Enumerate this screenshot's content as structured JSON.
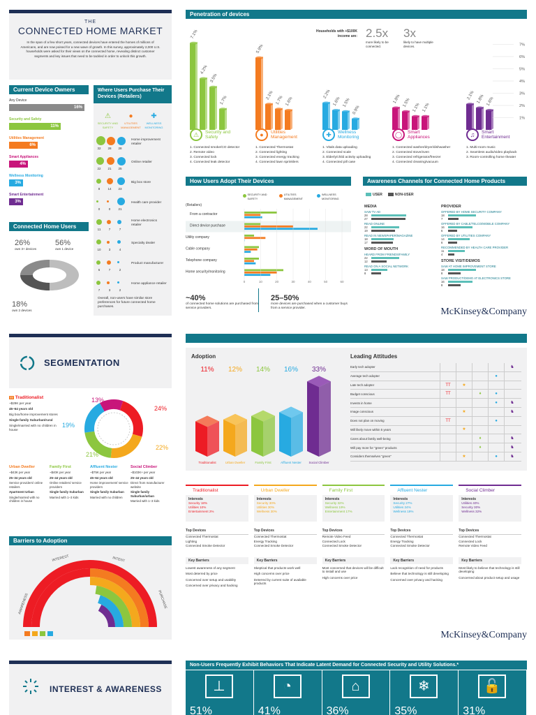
{
  "colors": {
    "teal": "#12788a",
    "navy": "#1e2f55",
    "grey": "#8a8a8a",
    "security": "#8cc63f",
    "utilities": "#f47b20",
    "wellness": "#27aae1",
    "appliances": "#c8157a",
    "entertainment": "#6f2c91",
    "red": "#ed1c24"
  },
  "connected": {
    "the": "THE",
    "title": "CONNECTED HOME MARKET",
    "intro": "In the span of a few short years, connected devices have entered the homes of millions of Americans, and are now poised for a new wave of growth. In this survey, approximately 2,000 U.S. households were asked for their views on the connected home, revealing distinct customer segments and key issues that need to be tackled in order to unlock this growth."
  },
  "current_owners": {
    "header": "Current Device Owners",
    "items": [
      {
        "label": "Any Device",
        "value": "16%",
        "pct": 16,
        "color": "#8a8a8a"
      },
      {
        "label": "Security and Safety",
        "value": "11%",
        "pct": 11,
        "color": "#8cc63f"
      },
      {
        "label": "Utilities Management",
        "value": "6%",
        "pct": 6,
        "color": "#f47b20"
      },
      {
        "label": "Smart Appliances",
        "value": "4%",
        "pct": 4,
        "color": "#c8157a"
      },
      {
        "label": "Wellness Monitoring",
        "value": "3%",
        "pct": 3,
        "color": "#27aae1"
      },
      {
        "label": "Smart Entertainment",
        "value": "3%",
        "pct": 3,
        "color": "#6f2c91"
      }
    ]
  },
  "connected_users": {
    "header": "Connected Home Users",
    "stat1": "26%",
    "stat1_label": "own 3+ devices",
    "stat2": "56%",
    "stat2_label": "own 1 device",
    "stat3": "18%",
    "stat3_label": "own 2 devices"
  },
  "where_purchase": {
    "header": "Where Users Purchase Their Devices (Retailers)",
    "legend": [
      "SECURITY AND SAFETY",
      "UTILITIES MANAGEMENT",
      "WELLNESS MONITORING"
    ],
    "rows": [
      {
        "nums": [
          "32",
          "28",
          "28"
        ],
        "label": "Home improvement retailer"
      },
      {
        "nums": [
          "22",
          "21",
          "25"
        ],
        "label": "Online retailer"
      },
      {
        "nums": [
          "8",
          "14",
          "23"
        ],
        "label": "Big box store"
      },
      {
        "nums": [
          "0",
          "0",
          "21"
        ],
        "label": "Health care provider"
      },
      {
        "nums": [
          "11",
          "7",
          "7"
        ],
        "label": "Home electronics retailer"
      },
      {
        "nums": [
          "10",
          "3",
          "4"
        ],
        "label": "Specialty dealer"
      },
      {
        "nums": [
          "6",
          "7",
          "2"
        ],
        "label": "Product manufacturer"
      },
      {
        "nums": [
          "7",
          "3",
          "2"
        ],
        "label": "Home appliance retailer"
      }
    ],
    "note": "Overall, non-users have similar store preferences for future connected home purchases."
  },
  "penetration": {
    "header": "Penetration of devices",
    "callout_label": "Households with +$100K income are:",
    "callout1_value": "2.5x",
    "callout1_text": "more likely to be connected.",
    "callout2_value": "3x",
    "callout2_text": "likely to have multiple devices.",
    "y_ticks": [
      "7%",
      "6%",
      "5%",
      "4%",
      "3%",
      "2%",
      "1%"
    ],
    "groups": [
      {
        "name": "Security and Safety",
        "values": [
          7.1,
          4.2,
          3.5,
          1.7
        ],
        "labels": [
          "7.1%",
          "4.2%",
          "3.5%",
          "1.7%"
        ],
        "items": [
          "1. Connected smoke/CO detector",
          "2. Remote video",
          "3. Connected lock",
          "4. Connected leak detector"
        ]
      },
      {
        "name": "Utilities Management",
        "values": [
          5.9,
          2.1,
          1.7,
          1.6
        ],
        "labels": [
          "5.9%",
          "2.1%",
          "1.7%",
          "1.6%"
        ],
        "items": [
          "1. Connected Thermostat",
          "2. Connected lighting",
          "3. Connected energy tracking",
          "4. Connected lawn sprinklers"
        ]
      },
      {
        "name": "Wellness Monitoring",
        "values": [
          2.2,
          1.6,
          1.5,
          0.9
        ],
        "labels": [
          "2.2%",
          "1.6%",
          "1.5%",
          "0.9%"
        ],
        "items": [
          "1. Vitals data uploading",
          "2. Connected scale",
          "3. Elderly/child activity uploading",
          "4. Connected pill case"
        ]
      },
      {
        "name": "Smart Appliances",
        "values": [
          1.8,
          1.5,
          1.1,
          1.1
        ],
        "labels": [
          "1.8%",
          "1.5%",
          "1.1%",
          "1.1%"
        ],
        "items": [
          "1. Connected washer/dryer/dishwasher",
          "2. Connected stove/oven",
          "3. Connected refrigerator/freezer",
          "4. Connected cleaning/vacuum"
        ]
      },
      {
        "name": "Smart Entertainment",
        "values": [
          2.1,
          1.8,
          1.6
        ],
        "labels": [
          "2.1%",
          "1.8%",
          "1.6%"
        ],
        "items": [
          "1. Multi-room music",
          "2. Seamless audio/video playback",
          "3. Room-controlling home theater"
        ]
      }
    ]
  },
  "adopt": {
    "header": "How Users Adopt Their Devices",
    "legend": [
      "SECURITY AND SAFETY",
      "UTILITIES MANAGEMENT",
      "WELLNESS MONITORING"
    ],
    "retailers_label": "(Retailers)",
    "categories": [
      "From a contractor",
      "Direct device purchase",
      "Utility company",
      "Cable company",
      "Telephone company",
      "Home security/monitoring"
    ],
    "series": [
      {
        "name": "SECURITY AND SAFETY",
        "values": [
          20,
          10,
          6,
          9,
          9,
          24
        ]
      },
      {
        "name": "UTILITIES MANAGEMENT",
        "values": [
          10,
          30,
          13,
          8,
          6,
          20
        ]
      },
      {
        "name": "WELLNESS MONITORING",
        "values": [
          11,
          45,
          0,
          4,
          7,
          16
        ]
      }
    ],
    "x_ticks": [
      "0",
      "10",
      "20",
      "30",
      "40",
      "50",
      "60"
    ],
    "stat1": "~40%",
    "stat1_text": "of connected home solutions are purchased from service providers.",
    "stat2": "25–50%",
    "stat2_text": "more devices are purchased when a customer buys from a service provider."
  },
  "awareness": {
    "header": "Awareness Channels for Connected Home Products",
    "legend_user": "USER",
    "legend_nonuser": "NON-USER",
    "media_title": "MEDIA",
    "media": [
      {
        "label": "SAW TV AD",
        "u": "28",
        "n": "27"
      },
      {
        "label": "READ ONLINE",
        "u": "22",
        "n": "19"
      },
      {
        "label": "READ IN NEWSPAPER/MAGAZINE",
        "u": "18",
        "n": "17"
      }
    ],
    "wom_title": "WORD OF MOUTH",
    "wom": [
      {
        "label": "HEARD FROM FRIENDS/FAMILY",
        "u": "22",
        "n": "12"
      },
      {
        "label": "READ ON A SOCIAL NETWORK",
        "u": "13",
        "n": "8"
      }
    ],
    "provider_title": "PROVIDER",
    "provider": [
      {
        "label": "OFFERED BY HOME SECURITY COMPANY",
        "u": "18",
        "n": "7"
      },
      {
        "label": "OFFERED BY CABLE/TELCO/MOBILE COMPANY",
        "u": "16",
        "n": "6"
      },
      {
        "label": "OFFERED BY UTILITIES COMPANY",
        "u": "14",
        "n": "6"
      },
      {
        "label": "RECOMMENDED BY HEALTH CARE PROVIDER",
        "u": "11",
        "n": "4"
      }
    ],
    "store_title": "STORE VISIT/DEMOS",
    "store": [
      {
        "label": "SAW AT HOME IMPROVEMENT STORE",
        "u": "18",
        "n": "8"
      },
      {
        "label": "SAW PRODUCT/DEMO AT ELECTRONICS STORE",
        "u": "16",
        "n": "8"
      }
    ],
    "logo": "McKinsey&Company"
  },
  "segmentation": {
    "title": "SEGMENTATION",
    "donut_labels": [
      "13%",
      "19%",
      "21%",
      "24%",
      "22%"
    ],
    "donut_values": [
      13,
      19,
      21,
      24,
      22
    ],
    "traditionalist": {
      "name": "Traditionalist",
      "lines": [
        "~$29K per year",
        "45–64 years old",
        "Big box/home improvement stores",
        "Single family Suburban/rural",
        "Single/married with no children in house"
      ]
    },
    "segments": [
      {
        "name": "Urban Dweller",
        "lines": [
          "~$43K per year",
          "25–34 years old",
          "Service providers/ online retailers",
          "Apartment Urban",
          "Single/married with no children in house"
        ]
      },
      {
        "name": "Family First",
        "lines": [
          "~$40K per year",
          "25–44 years old",
          "Online retailers/ service providers",
          "Single family Suburban",
          "Married with 1–3 kids"
        ]
      },
      {
        "name": "Affluent Nester",
        "lines": [
          "~$75K per year",
          "45–64 years old",
          "Home improvement/ service providers",
          "Single family Suburban",
          "Married with no children"
        ]
      },
      {
        "name": "Social Climber",
        "lines": [
          "~$103K+ per year",
          "25–44 years old",
          "Direct from manufacturer website",
          "Single family Suburban/urban",
          "Married with 1–3 kids"
        ]
      }
    ]
  },
  "barriers": {
    "header": "Barriers to Adoption",
    "labels": [
      "INTEREST",
      "INTENT",
      "AWARENESS",
      "PURCHASE"
    ]
  },
  "adoption": {
    "title": "Adoption",
    "values": [
      11,
      12,
      14,
      16,
      33
    ],
    "labels": [
      "11%",
      "12%",
      "14%",
      "16%",
      "33%"
    ],
    "names": [
      "Traditionalist",
      "Urban Dweller",
      "Family First",
      "Affluent Nester",
      "Social Climber"
    ]
  },
  "attitudes": {
    "title": "Leading Attitudes",
    "rows": [
      "Early tech adopter",
      "Average tech adopter",
      "Late tech adopter",
      "Budget conscious",
      "Invests in home",
      "Image conscious",
      "Does not plan on moving",
      "Will likely move within 5 years",
      "Cares about family well-being",
      "Will pay more for \"green\" products",
      "Considers themselves \"green\""
    ]
  },
  "segment_cards": [
    {
      "name": "Traditionalist",
      "interests_label": "Interests",
      "interests": [
        "Security 18%",
        "Utilities 10%",
        "Entertainment 2%"
      ],
      "devices_label": "Top Devices",
      "devices": [
        "Connected Thermostat",
        "Lighting",
        "Connected Smoke Detector"
      ],
      "barriers_label": "Key Barriers",
      "barriers": [
        "Lowest awareness of any segment",
        "Most deterred by price",
        "Concerned over setup and usability",
        "Concerned over privacy and hacking"
      ]
    },
    {
      "name": "Urban Dweller",
      "interests_label": "Interests",
      "interests": [
        "Security 30%",
        "Utilities 30%",
        "Wellness 30%"
      ],
      "devices_label": "Top Devices",
      "devices": [
        "Connected Thermostat",
        "Energy Tracking",
        "Connected Smoke Detector"
      ],
      "barriers_label": "Key Barriers",
      "barriers": [
        "Skeptical that products work well",
        "High concerns over price",
        "Deterred by current suite of available products"
      ]
    },
    {
      "name": "Family First",
      "interests_label": "Interests",
      "interests": [
        "Security 32%",
        "Wellness 19%",
        "Entertainment 17%"
      ],
      "devices_label": "Top Devices",
      "devices": [
        "Remote Video Feed",
        "Connected Lock",
        "Connected Smoke Detector"
      ],
      "barriers_label": "Key Barriers",
      "barriers": [
        "Most concerned that devices will be difficult to install and use",
        "High concerns over price"
      ]
    },
    {
      "name": "Affluent Nester",
      "interests_label": "Interests",
      "interests": [
        "Security 27%",
        "Utilities 24%",
        "Wellness 19%"
      ],
      "devices_label": "Top Devices",
      "devices": [
        "Connected Thermostat",
        "Energy Tracking",
        "Connected Smoke Detector"
      ],
      "barriers_label": "Key Barriers",
      "barriers": [
        "Lack recognition of need for products",
        "Believe that technology is still developing",
        "Concerned over privacy and hacking"
      ]
    },
    {
      "name": "Social Climber",
      "interests_label": "Interests",
      "interests": [
        "Utilities 40%",
        "Security 30%",
        "Wellness 32%"
      ],
      "devices_label": "Top Devices",
      "devices": [
        "Connected Thermostat",
        "Connected Lock",
        "Remote Video Feed"
      ],
      "barriers_label": "Key Barriers",
      "barriers": [
        "Most likely to believe that technology is still developing",
        "Concerned about product setup and usage"
      ]
    }
  ],
  "logo2": "McKinsey&Company",
  "interest": {
    "title": "INTEREST & AWARENESS",
    "banner": "Non-Users Frequently Exhibit Behaviors That Indicate Latent Demand for Connected Security and Utility Solutions.*",
    "pcts": [
      "51%",
      "41%",
      "36%",
      "35%",
      "31%"
    ]
  }
}
